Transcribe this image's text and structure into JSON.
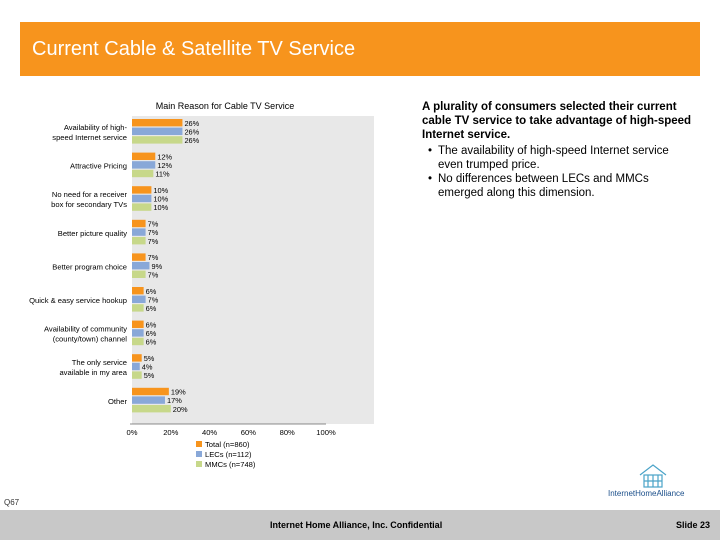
{
  "slide": {
    "title": "Current Cable & Satellite TV Service",
    "lead": "A plurality of consumers selected their current cable TV service to take advantage of high-speed Internet service.",
    "bullets": [
      "The availability of high-speed Internet service even trumped price.",
      "No differences between LECs and MMCs emerged along this dimension."
    ],
    "footnote": "Q67",
    "footer_center": "Internet Home Alliance, Inc. Confidential",
    "footer_right": "Slide 23",
    "logo_text": "InternetHomeAlliance",
    "logo_icon": "house-icon"
  },
  "colors": {
    "total": "#f7941d",
    "lecs": "#89a8d8",
    "mmcs": "#c7d88a",
    "title_bar": "#f7941d",
    "plot_bg": "#e8e8e8"
  },
  "chart_data": {
    "type": "bar",
    "orientation": "horizontal",
    "title": "Main Reason for Cable TV Service",
    "xlabel": "",
    "ylabel": "",
    "xlim": [
      0,
      100
    ],
    "x_ticks": [
      "0%",
      "20%",
      "40%",
      "60%",
      "80%",
      "100%"
    ],
    "grid": false,
    "legend_position": "bottom",
    "categories": [
      "Availability of high-speed Internet service",
      "Attractive Pricing",
      "No need for a receiver box for secondary TVs",
      "Better picture quality",
      "Better program choice",
      "Quick & easy service hookup",
      "Availability of community (county/town) channel",
      "The only service available in my area",
      "Other"
    ],
    "category_lines": [
      [
        "Availability of high-",
        "speed Internet service"
      ],
      [
        "Attractive Pricing"
      ],
      [
        "No need for a receiver",
        "box for secondary TVs"
      ],
      [
        "Better picture quality"
      ],
      [
        "Better program choice"
      ],
      [
        "Quick & easy service hookup"
      ],
      [
        "Availability of community",
        "(county/town) channel"
      ],
      [
        "The only service",
        "available in my area"
      ],
      [
        "Other"
      ]
    ],
    "series": [
      {
        "name": "Total (n=860)",
        "values": [
          26,
          12,
          10,
          7,
          7,
          6,
          6,
          5,
          19
        ],
        "labels": [
          "26%",
          "12%",
          "10%",
          "7%",
          "7%",
          "6%",
          "6%",
          "5%",
          "19%"
        ]
      },
      {
        "name": "LECs (n=112)",
        "values": [
          26,
          12,
          10,
          7,
          9,
          7,
          6,
          4,
          17
        ],
        "labels": [
          "26%",
          "12%",
          "10%",
          "7%",
          "9%",
          "7%",
          "6%",
          "4%",
          "17%"
        ]
      },
      {
        "name": "MMCs (n=748)",
        "values": [
          26,
          11,
          10,
          7,
          7,
          6,
          6,
          5,
          20
        ],
        "labels": [
          "26%",
          "11%",
          "10%",
          "7%",
          "7%",
          "6%",
          "6%",
          "5%",
          "20%"
        ]
      }
    ]
  }
}
